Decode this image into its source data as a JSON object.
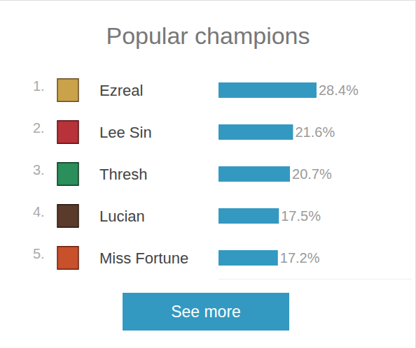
{
  "chart_data": {
    "type": "bar",
    "orientation": "horizontal",
    "title": "Popular champions",
    "rank_labels": [
      "1.",
      "2.",
      "3.",
      "4.",
      "5."
    ],
    "categories": [
      "Ezreal",
      "Lee Sin",
      "Thresh",
      "Lucian",
      "Miss Fortune"
    ],
    "values": [
      28.4,
      21.6,
      20.7,
      17.5,
      17.2
    ],
    "value_labels": [
      "28.4%",
      "21.6%",
      "20.7%",
      "17.5%",
      "17.2%"
    ],
    "data_labels": true,
    "color": "#3399c1",
    "xlim": [
      0,
      56
    ],
    "xticks": [],
    "grid": false,
    "tick_labels": false,
    "button": "See more"
  }
}
